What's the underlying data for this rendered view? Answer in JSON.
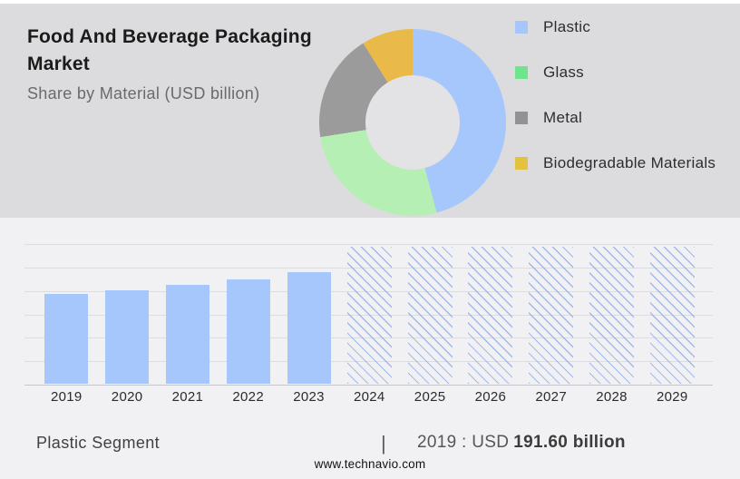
{
  "header": {
    "title_line1": "Food And Beverage Packaging",
    "title_line2": "Market",
    "subtitle": "Share by Material (USD billion)"
  },
  "caption": {
    "segment_label": "Plastic Segment",
    "separator": "|",
    "value_prefix": "2019 : USD",
    "value_bold": "191.60 billion"
  },
  "footer": {
    "url": "www.technavio.com"
  },
  "chart_data": [
    {
      "type": "pie",
      "subtype": "donut",
      "title": "Share by Material (USD billion)",
      "labels": [
        "Plastic",
        "Glass",
        "Metal",
        "Biodegradable Materials"
      ],
      "values_pct_estimated": [
        45.8,
        26.7,
        18.6,
        8.9
      ],
      "angles_deg": [
        [
          0,
          165
        ],
        [
          165,
          261
        ],
        [
          261,
          328
        ],
        [
          328,
          360
        ]
      ],
      "slice_colors": [
        "#a6c7fb",
        "#b6efb3",
        "#9b9b9b",
        "#e9ba4a"
      ],
      "legend_swatch_colors": [
        "#a6c7fb",
        "#6ee58c",
        "#929292",
        "#e2c23e"
      ],
      "legend_position": "right",
      "hole_ratio": 0.5
    },
    {
      "type": "bar",
      "categories": [
        "2019",
        "2020",
        "2021",
        "2022",
        "2023",
        "2024",
        "2025",
        "2026",
        "2027",
        "2028",
        "2029"
      ],
      "values_usd_billion": [
        191.6,
        199.5,
        209.5,
        221.5,
        237.5,
        null,
        null,
        null,
        null,
        null,
        null
      ],
      "forecast_from": "2024",
      "forecast_rendering": "full-height diagonal hatched columns, values not labeled",
      "ylim": [
        0,
        299
      ],
      "gridline_count": 7,
      "y_axis_labels_visible": false,
      "legend_position": "none",
      "bar_color": "#a6c7fb",
      "hatch_line_color": "#8fb0ea",
      "annotation": "2019 : USD 191.60 billion"
    }
  ],
  "colors": {
    "header_bg": "#dcdcde",
    "chart_bg": "#f1f1f3",
    "donut_hole": "#e3e3e5",
    "gridline": "#dddde0",
    "baseline": "#c6c6c9",
    "title_text": "#1b1b1b",
    "subtitle_text": "#6a6a6a",
    "legend_text": "#2d2d2d",
    "axis_text": "#2b2b2b",
    "caption_text": "#414141",
    "value_text": "#3c3c3c"
  }
}
